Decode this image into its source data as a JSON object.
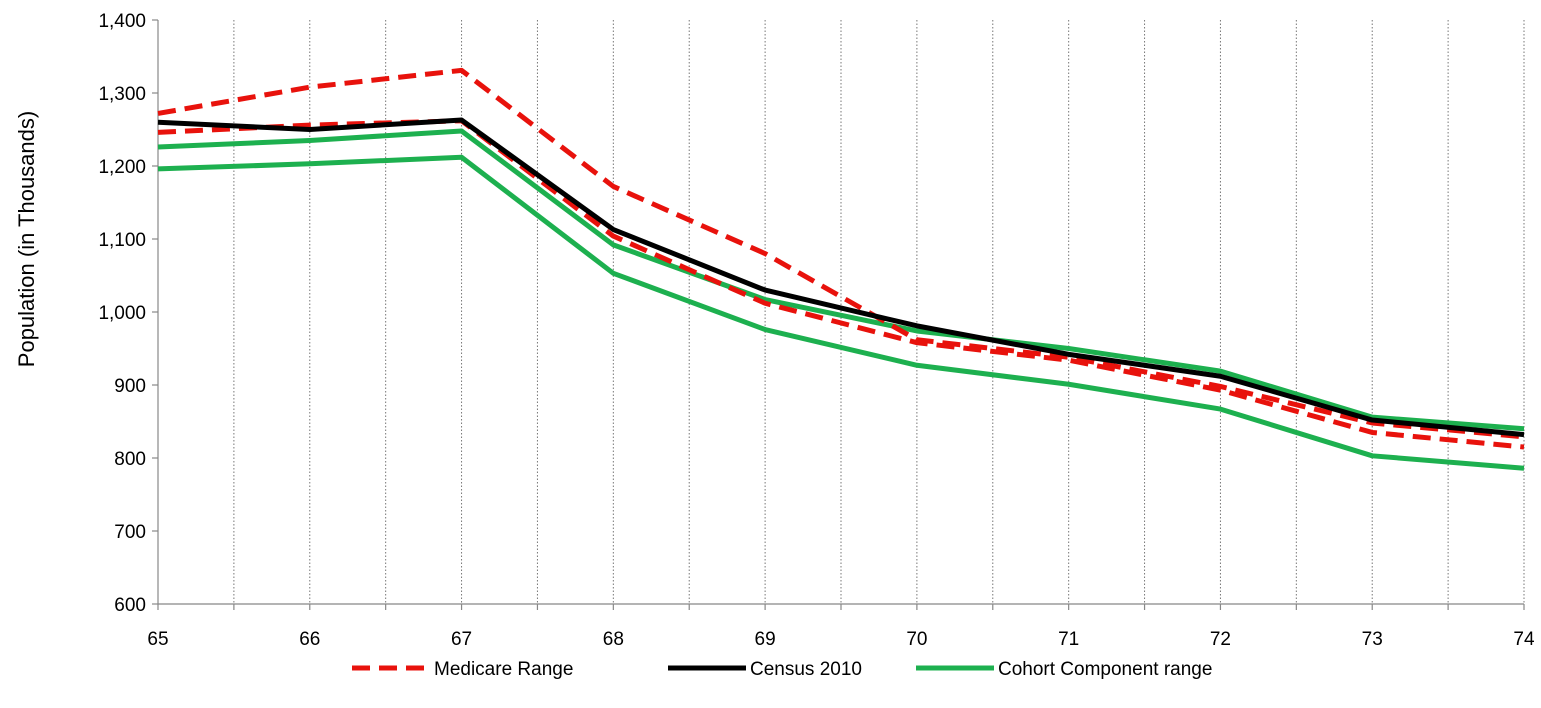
{
  "chart_data": {
    "type": "line",
    "title": "",
    "xlabel": "",
    "ylabel": "Population (in Thousands)",
    "x": [
      65,
      66,
      67,
      68,
      69,
      70,
      71,
      72,
      73,
      74
    ],
    "x_tick_labels": [
      "65",
      "66",
      "67",
      "68",
      "69",
      "70",
      "71",
      "72",
      "73",
      "74"
    ],
    "ylim": [
      600,
      1400
    ],
    "y_tick_values": [
      600,
      700,
      800,
      900,
      1000,
      1100,
      1200,
      1300,
      1400
    ],
    "y_tick_labels": [
      "600",
      "700",
      "800",
      "900",
      "1,000",
      "1,100",
      "1,200",
      "1,300",
      "1,400"
    ],
    "grid": "vertical dotted lines at and between each age",
    "legend_position": "bottom",
    "series": [
      {
        "name": "Medicare Range",
        "legend": true,
        "color": "#e8120c",
        "style": "dashed",
        "values": [
          1272,
          1308,
          1331,
          1172,
          1080,
          962,
          938,
          898,
          848,
          829
        ]
      },
      {
        "name": "Medicare Range",
        "legend": false,
        "color": "#e8120c",
        "style": "dashed",
        "values": [
          1246,
          1256,
          1262,
          1104,
          1012,
          958,
          934,
          893,
          835,
          815
        ]
      },
      {
        "name": "Census 2010",
        "legend": true,
        "color": "#000000",
        "style": "solid",
        "values": [
          1260,
          1250,
          1263,
          1113,
          1030,
          981,
          942,
          912,
          852,
          832
        ]
      },
      {
        "name": "Cohort Component range",
        "legend": true,
        "color": "#1db04f",
        "style": "solid",
        "values": [
          1226,
          1235,
          1248,
          1092,
          1017,
          974,
          950,
          919,
          856,
          840
        ]
      },
      {
        "name": "Cohort Component range",
        "legend": false,
        "color": "#1db04f",
        "style": "solid",
        "values": [
          1196,
          1203,
          1212,
          1053,
          976,
          927,
          901,
          867,
          803,
          786
        ]
      }
    ]
  }
}
